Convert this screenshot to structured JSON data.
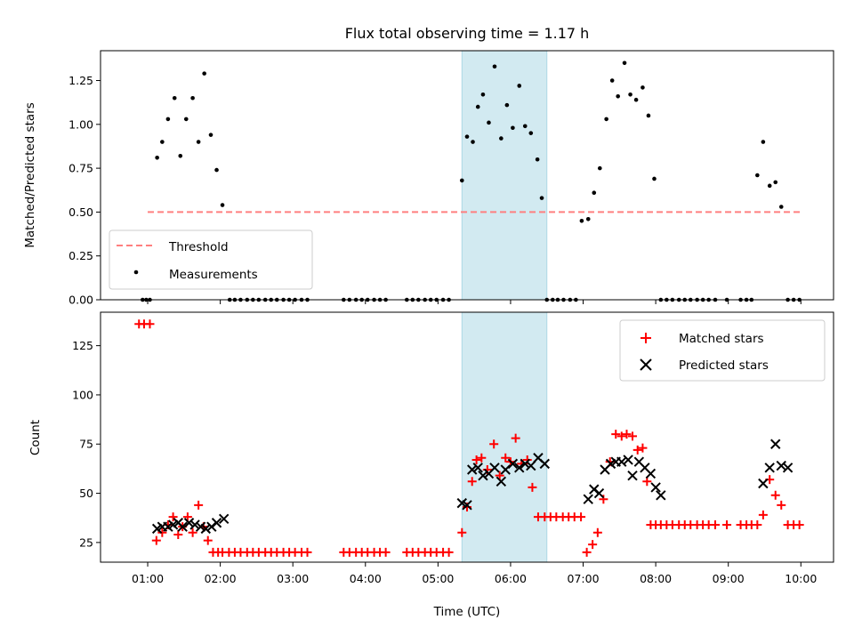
{
  "chart_data": {
    "type": "scatter",
    "title": "Flux total observing time = 1.17 h",
    "xlabel": "Time (UTC)",
    "x_tick_labels": [
      "01:00",
      "02:00",
      "03:00",
      "04:00",
      "05:00",
      "06:00",
      "07:00",
      "08:00",
      "09:00",
      "10:00"
    ],
    "x_range_hours": [
      0.35,
      10.45
    ],
    "highlight_span_hours": [
      5.33,
      6.5
    ],
    "highlight_color": "#add8e6",
    "top_panel": {
      "ylabel": "Matched/Predicted stars",
      "ylim": [
        0,
        1.42
      ],
      "y_ticks": [
        "0.00",
        "0.25",
        "0.50",
        "0.75",
        "1.00",
        "1.25"
      ],
      "threshold": {
        "name": "Threshold",
        "value": 0.5,
        "x_range_hours": [
          1.0,
          10.0
        ],
        "color": "#ff7f7f"
      },
      "measurements": {
        "name": "Measurements",
        "color": "#000000",
        "x_hours": [
          0.93,
          0.98,
          1.03,
          1.13,
          1.2,
          1.28,
          1.37,
          1.45,
          1.53,
          1.62,
          1.7,
          1.78,
          1.87,
          1.95,
          2.03,
          2.13,
          2.2,
          2.28,
          2.37,
          2.45,
          2.53,
          2.62,
          2.7,
          2.78,
          2.87,
          2.95,
          3.03,
          3.12,
          3.2,
          3.7,
          3.78,
          3.87,
          3.95,
          4.03,
          4.12,
          4.2,
          4.28,
          4.57,
          4.65,
          4.73,
          4.82,
          4.9,
          4.98,
          5.07,
          5.15,
          5.33,
          5.4,
          5.48,
          5.55,
          5.62,
          5.7,
          5.78,
          5.87,
          5.95,
          6.03,
          6.12,
          6.2,
          6.28,
          6.37,
          6.43,
          6.5,
          6.58,
          6.65,
          6.73,
          6.82,
          6.9,
          6.98,
          7.07,
          7.15,
          7.23,
          7.32,
          7.4,
          7.48,
          7.57,
          7.65,
          7.73,
          7.82,
          7.9,
          7.98,
          8.07,
          8.15,
          8.23,
          8.32,
          8.4,
          8.48,
          8.57,
          8.65,
          8.73,
          8.82,
          8.98,
          9.17,
          9.25,
          9.32,
          9.4,
          9.48,
          9.57,
          9.65,
          9.73,
          9.82,
          9.9,
          9.98
        ],
        "y_values": [
          0,
          0,
          0,
          0.81,
          0.9,
          1.03,
          1.15,
          0.82,
          1.03,
          1.15,
          0.9,
          1.29,
          0.94,
          0.74,
          0.54,
          0,
          0,
          0,
          0,
          0,
          0,
          0,
          0,
          0,
          0,
          0,
          0,
          0,
          0,
          0,
          0,
          0,
          0,
          0,
          0,
          0,
          0,
          0,
          0,
          0,
          0,
          0,
          0,
          0,
          0,
          0.68,
          0.93,
          0.9,
          1.1,
          1.17,
          1.01,
          1.33,
          0.92,
          1.11,
          0.98,
          1.22,
          0.99,
          0.95,
          0.8,
          0.58,
          0,
          0,
          0,
          0,
          0,
          0,
          0.45,
          0.46,
          0.61,
          0.75,
          1.03,
          1.25,
          1.16,
          1.35,
          1.17,
          1.14,
          1.21,
          1.05,
          0.69,
          0,
          0,
          0,
          0,
          0,
          0,
          0,
          0,
          0,
          0,
          0,
          0,
          0,
          0,
          0.71,
          0.9,
          0.65,
          0.67,
          0.53,
          0,
          0,
          0
        ]
      }
    },
    "bottom_panel": {
      "ylabel": "Count",
      "ylim": [
        15,
        142
      ],
      "y_ticks": [
        "25",
        "50",
        "75",
        "100",
        "125"
      ],
      "matched": {
        "name": "Matched stars",
        "color": "#ff0000",
        "x_hours": [
          0.88,
          0.95,
          1.03,
          1.12,
          1.2,
          1.28,
          1.35,
          1.42,
          1.48,
          1.55,
          1.62,
          1.7,
          1.77,
          1.83,
          1.9,
          1.97,
          2.03,
          2.12,
          2.2,
          2.28,
          2.37,
          2.45,
          2.53,
          2.62,
          2.7,
          2.78,
          2.87,
          2.95,
          3.03,
          3.12,
          3.2,
          3.7,
          3.78,
          3.87,
          3.95,
          4.03,
          4.12,
          4.2,
          4.28,
          4.57,
          4.65,
          4.73,
          4.82,
          4.9,
          4.98,
          5.07,
          5.15,
          5.33,
          5.4,
          5.47,
          5.53,
          5.6,
          5.68,
          5.77,
          5.85,
          5.93,
          6.0,
          6.07,
          6.15,
          6.23,
          6.3,
          6.38,
          6.47,
          6.55,
          6.63,
          6.72,
          6.8,
          6.88,
          6.97,
          7.05,
          7.13,
          7.2,
          7.28,
          7.37,
          7.45,
          7.53,
          7.6,
          7.68,
          7.75,
          7.82,
          7.88,
          7.93,
          8.0,
          8.07,
          8.15,
          8.23,
          8.32,
          8.4,
          8.48,
          8.57,
          8.65,
          8.73,
          8.82,
          8.98,
          9.17,
          9.25,
          9.32,
          9.4,
          9.48,
          9.57,
          9.65,
          9.73,
          9.82,
          9.9,
          9.98
        ],
        "y_values": [
          136,
          136,
          136,
          26,
          30,
          34,
          38,
          29,
          33,
          38,
          30,
          44,
          33,
          26,
          20,
          20,
          20,
          20,
          20,
          20,
          20,
          20,
          20,
          20,
          20,
          20,
          20,
          20,
          20,
          20,
          20,
          20,
          20,
          20,
          20,
          20,
          20,
          20,
          20,
          20,
          20,
          20,
          20,
          20,
          20,
          20,
          20,
          30,
          43,
          56,
          67,
          68,
          62,
          75,
          59,
          68,
          66,
          78,
          65,
          67,
          53,
          38,
          38,
          38,
          38,
          38,
          38,
          38,
          38,
          20,
          24,
          30,
          47,
          66,
          80,
          79,
          80,
          79,
          72,
          73,
          56,
          34,
          34,
          34,
          34,
          34,
          34,
          34,
          34,
          34,
          34,
          34,
          34,
          34,
          34,
          34,
          34,
          34,
          39,
          57,
          49,
          44,
          34,
          34,
          34
        ]
      },
      "predicted": {
        "name": "Predicted stars",
        "color": "#000000",
        "x_hours": [
          1.13,
          1.2,
          1.28,
          1.35,
          1.42,
          1.48,
          1.57,
          1.65,
          1.73,
          1.8,
          1.88,
          1.95,
          2.05,
          5.33,
          5.4,
          5.47,
          5.55,
          5.62,
          5.7,
          5.78,
          5.87,
          5.93,
          6.03,
          6.12,
          6.2,
          6.28,
          6.38,
          6.47,
          7.07,
          7.15,
          7.22,
          7.3,
          7.38,
          7.45,
          7.53,
          7.62,
          7.68,
          7.77,
          7.85,
          7.93,
          8.0,
          8.07,
          9.48,
          9.57,
          9.65,
          9.73,
          9.82
        ],
        "y_values": [
          32,
          33,
          33,
          34,
          35,
          33,
          35,
          34,
          33,
          32,
          33,
          35,
          37,
          45,
          44,
          62,
          63,
          59,
          60,
          63,
          56,
          62,
          65,
          63,
          65,
          64,
          68,
          65,
          47,
          52,
          50,
          62,
          65,
          66,
          66,
          67,
          59,
          66,
          63,
          60,
          53,
          49,
          55,
          63,
          75,
          64,
          63
        ]
      }
    }
  }
}
